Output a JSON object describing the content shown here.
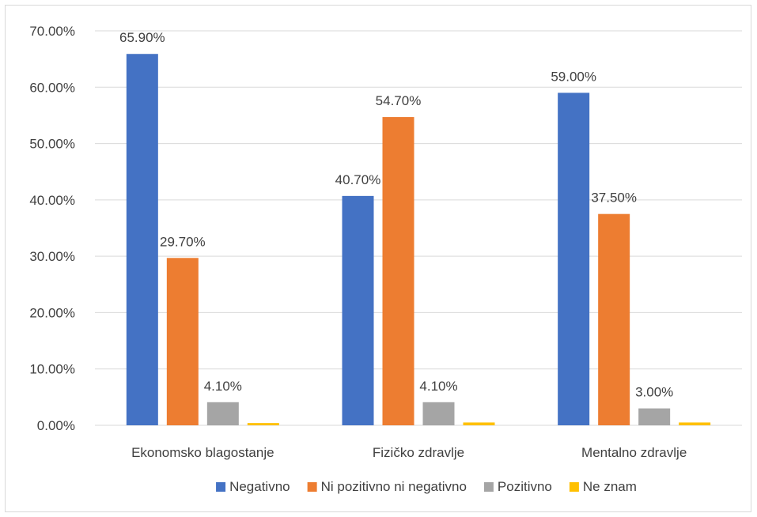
{
  "chart_data": {
    "type": "bar",
    "categories": [
      "Ekonomsko blagostanje",
      "Fizičko zdravlje",
      "Mentalno zdravlje"
    ],
    "series": [
      {
        "name": "Negativno",
        "color": "#4472C4",
        "values": [
          65.9,
          40.7,
          59.0
        ],
        "labels": [
          "65.90%",
          "40.70%",
          "59.00%"
        ]
      },
      {
        "name": "Ni pozitivno ni negativno",
        "color": "#ED7D31",
        "values": [
          29.7,
          54.7,
          37.5
        ],
        "labels": [
          "29.70%",
          "54.70%",
          "37.50%"
        ]
      },
      {
        "name": "Pozitivno",
        "color": "#A5A5A5",
        "values": [
          4.1,
          4.1,
          3.0
        ],
        "labels": [
          "4.10%",
          "4.10%",
          "3.00%"
        ]
      },
      {
        "name": "Ne znam",
        "color": "#FFC000",
        "values": [
          0.4,
          0.5,
          0.5
        ],
        "labels": [
          "",
          "",
          ""
        ]
      }
    ],
    "y_ticks": [
      "0.00%",
      "10.00%",
      "20.00%",
      "30.00%",
      "40.00%",
      "50.00%",
      "60.00%",
      "70.00%"
    ],
    "ylim": [
      0,
      70
    ],
    "grid": true,
    "legend": "bottom",
    "title": "",
    "xlabel": "",
    "ylabel": ""
  }
}
